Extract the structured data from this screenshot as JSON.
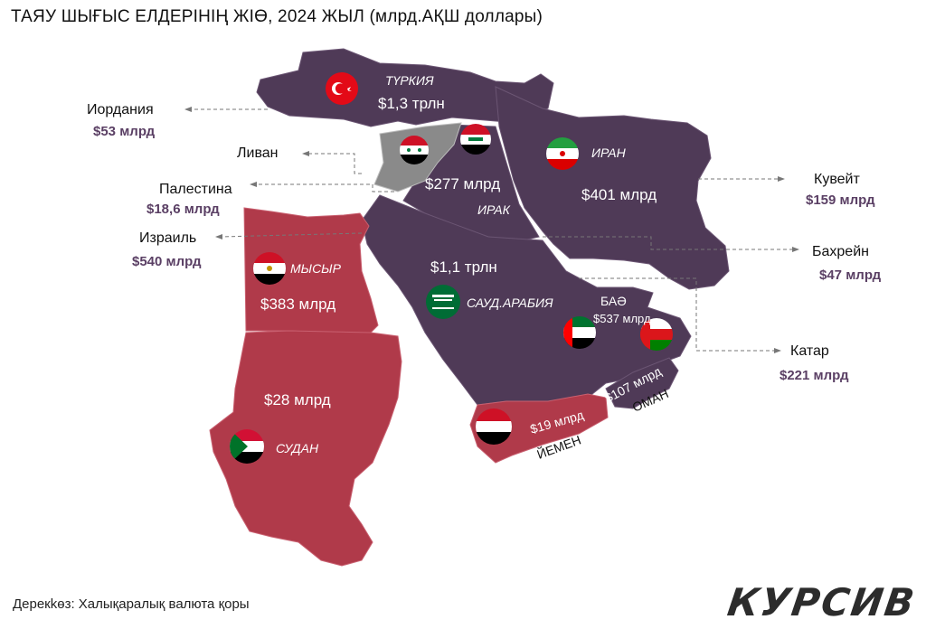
{
  "title": "ТАЯУ ШЫҒЫС ЕЛДЕРІНІҢ ЖІӨ, 2024 ЖЫЛ  (млрд.АҚШ доллары)",
  "source": "Дерекkөз: Халықаралық валюта қоры",
  "logo_text": "КУРСИВ",
  "colors": {
    "asia": "#4f3a57",
    "africa": "#b03a4a",
    "syria": "#8a8a8a",
    "label_value": "#5a3f64"
  },
  "countries": {
    "turkey": {
      "name": "ТҮРКИЯ",
      "value": "$1,3 трлн",
      "flag": "turkey-flag"
    },
    "syria": {
      "flag": "syria-flag"
    },
    "iraq": {
      "name": "ИРАК",
      "value": "$277 млрд",
      "flag": "iraq-flag"
    },
    "iran": {
      "name": "ИРАН",
      "value": "$401 млрд",
      "flag": "iran-flag"
    },
    "saudi": {
      "name": "САУД.АРАБИЯ",
      "value": "$1,1 трлн",
      "flag": "saudi-flag"
    },
    "uae": {
      "name": "БАӘ",
      "value": "$537 млрд",
      "flag": "uae-flag"
    },
    "oman": {
      "name": "ОМАН",
      "value": "$107 млрд",
      "flag": "oman-flag"
    },
    "yemen": {
      "name": "ЙЕМЕН",
      "value": "$19 млрд",
      "flag": "yemen-flag"
    },
    "egypt": {
      "name": "МЫСЫР",
      "value": "$383  млрд",
      "flag": "egypt-flag"
    },
    "sudan": {
      "name": "СУДАН",
      "value": "$28 млрд",
      "flag": "sudan-flag"
    }
  },
  "side_labels": {
    "jordan": {
      "name": "Иордания",
      "value": "$53 млрд"
    },
    "lebanon": {
      "name": "Ливан"
    },
    "palestine": {
      "name": "Палестина",
      "value": "$18,6 млрд"
    },
    "israel": {
      "name": "Израиль",
      "value": "$540 млрд"
    },
    "kuwait": {
      "name": "Кувейт",
      "value": "$159 млрд"
    },
    "bahrain": {
      "name": "Бахрейн",
      "value": "$47 млрд"
    },
    "qatar": {
      "name": "Катар",
      "value": "$221 млрд"
    }
  }
}
